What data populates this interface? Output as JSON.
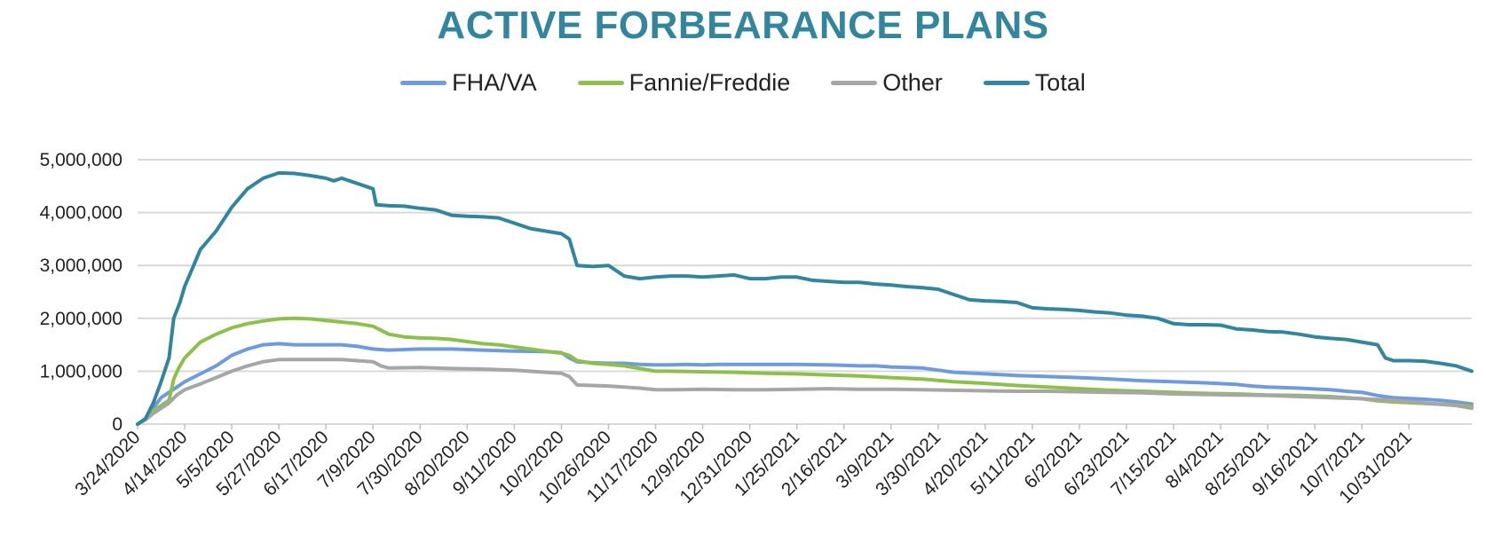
{
  "chart_data": {
    "type": "line",
    "title": "ACTIVE FORBEARANCE PLANS",
    "xlabel": "",
    "ylabel": "",
    "ylim": [
      0,
      5000000
    ],
    "y_ticks": [
      0,
      1000000,
      2000000,
      3000000,
      4000000,
      5000000
    ],
    "y_tick_labels": [
      "0",
      "1,000,000",
      "2,000,000",
      "3,000,000",
      "4,000,000",
      "5,000,000"
    ],
    "grid": true,
    "legend_position": "top-center",
    "x_domain": [
      0,
      85
    ],
    "x_tick_positions": [
      0,
      3,
      6,
      9,
      12,
      15,
      18,
      21,
      24,
      27,
      30,
      33,
      36,
      39,
      42,
      45,
      48,
      51,
      54,
      57,
      60,
      63,
      66,
      69,
      72,
      75,
      78,
      81
    ],
    "x_tick_labels": [
      "3/24/2020",
      "4/14/2020",
      "5/5/2020",
      "5/27/2020",
      "6/17/2020",
      "7/9/2020",
      "7/30/2020",
      "8/20/2020",
      "9/11/2020",
      "10/2/2020",
      "10/26/2020",
      "11/17/2020",
      "12/9/2020",
      "12/31/2020",
      "1/25/2021",
      "2/16/2021",
      "3/9/2021",
      "3/30/2021",
      "4/20/2021",
      "5/11/2021",
      "6/2/2021",
      "6/23/2021",
      "7/15/2021",
      "8/4/2021",
      "8/25/2021",
      "9/16/2021",
      "10/7/2021",
      "10/31/2021"
    ],
    "series": [
      {
        "name": "FHA/VA",
        "color": "#6F9BDC",
        "points": [
          [
            0,
            0
          ],
          [
            0.5,
            100000
          ],
          [
            1,
            300000
          ],
          [
            1.5,
            500000
          ],
          [
            2,
            600000
          ],
          [
            2.5,
            700000
          ],
          [
            3,
            800000
          ],
          [
            4,
            950000
          ],
          [
            5,
            1100000
          ],
          [
            6,
            1300000
          ],
          [
            7,
            1420000
          ],
          [
            8,
            1500000
          ],
          [
            9,
            1520000
          ],
          [
            10,
            1500000
          ],
          [
            12,
            1500000
          ],
          [
            13,
            1500000
          ],
          [
            14,
            1470000
          ],
          [
            15,
            1420000
          ],
          [
            16,
            1400000
          ],
          [
            18,
            1420000
          ],
          [
            20,
            1420000
          ],
          [
            22,
            1400000
          ],
          [
            24,
            1380000
          ],
          [
            26,
            1370000
          ],
          [
            27,
            1350000
          ],
          [
            27.5,
            1250000
          ],
          [
            28,
            1180000
          ],
          [
            29,
            1160000
          ],
          [
            30,
            1150000
          ],
          [
            31,
            1150000
          ],
          [
            32,
            1130000
          ],
          [
            33,
            1120000
          ],
          [
            34,
            1120000
          ],
          [
            35,
            1130000
          ],
          [
            36,
            1120000
          ],
          [
            37,
            1130000
          ],
          [
            38,
            1130000
          ],
          [
            40,
            1130000
          ],
          [
            42,
            1130000
          ],
          [
            44,
            1120000
          ],
          [
            45,
            1110000
          ],
          [
            46,
            1100000
          ],
          [
            47,
            1100000
          ],
          [
            48,
            1080000
          ],
          [
            50,
            1060000
          ],
          [
            51,
            1020000
          ],
          [
            52,
            980000
          ],
          [
            54,
            950000
          ],
          [
            56,
            920000
          ],
          [
            58,
            900000
          ],
          [
            60,
            880000
          ],
          [
            62,
            850000
          ],
          [
            64,
            820000
          ],
          [
            66,
            800000
          ],
          [
            68,
            780000
          ],
          [
            70,
            750000
          ],
          [
            71,
            720000
          ],
          [
            72,
            700000
          ],
          [
            74,
            680000
          ],
          [
            76,
            650000
          ],
          [
            77,
            620000
          ],
          [
            78,
            600000
          ],
          [
            79,
            540000
          ],
          [
            80,
            500000
          ],
          [
            82,
            470000
          ],
          [
            83,
            450000
          ],
          [
            84,
            420000
          ],
          [
            85,
            380000
          ]
        ]
      },
      {
        "name": "Fannie/Freddie",
        "color": "#8DC04A",
        "points": [
          [
            0,
            0
          ],
          [
            0.5,
            100000
          ],
          [
            1,
            250000
          ],
          [
            1.5,
            350000
          ],
          [
            2,
            450000
          ],
          [
            2.3,
            850000
          ],
          [
            2.6,
            1050000
          ],
          [
            3,
            1250000
          ],
          [
            3.5,
            1400000
          ],
          [
            4,
            1550000
          ],
          [
            5,
            1700000
          ],
          [
            6,
            1820000
          ],
          [
            7,
            1900000
          ],
          [
            8,
            1950000
          ],
          [
            9,
            1990000
          ],
          [
            10,
            2000000
          ],
          [
            11,
            1990000
          ],
          [
            12,
            1960000
          ],
          [
            13,
            1930000
          ],
          [
            14,
            1900000
          ],
          [
            15,
            1850000
          ],
          [
            16,
            1700000
          ],
          [
            17,
            1650000
          ],
          [
            18,
            1630000
          ],
          [
            19,
            1620000
          ],
          [
            20,
            1600000
          ],
          [
            21,
            1560000
          ],
          [
            22,
            1520000
          ],
          [
            23,
            1500000
          ],
          [
            24,
            1460000
          ],
          [
            25,
            1420000
          ],
          [
            26,
            1380000
          ],
          [
            27,
            1340000
          ],
          [
            27.5,
            1300000
          ],
          [
            28,
            1200000
          ],
          [
            29,
            1150000
          ],
          [
            30,
            1130000
          ],
          [
            31,
            1100000
          ],
          [
            32,
            1050000
          ],
          [
            33,
            1000000
          ],
          [
            34,
            1000000
          ],
          [
            36,
            990000
          ],
          [
            38,
            980000
          ],
          [
            40,
            960000
          ],
          [
            42,
            950000
          ],
          [
            44,
            930000
          ],
          [
            46,
            910000
          ],
          [
            48,
            880000
          ],
          [
            50,
            850000
          ],
          [
            52,
            800000
          ],
          [
            54,
            770000
          ],
          [
            56,
            730000
          ],
          [
            58,
            700000
          ],
          [
            60,
            670000
          ],
          [
            62,
            640000
          ],
          [
            64,
            620000
          ],
          [
            66,
            600000
          ],
          [
            68,
            580000
          ],
          [
            70,
            570000
          ],
          [
            72,
            550000
          ],
          [
            74,
            540000
          ],
          [
            76,
            520000
          ],
          [
            78,
            480000
          ],
          [
            79,
            440000
          ],
          [
            80,
            420000
          ],
          [
            82,
            390000
          ],
          [
            84,
            360000
          ],
          [
            85,
            340000
          ]
        ]
      },
      {
        "name": "Other",
        "color": "#A6A6A6",
        "points": [
          [
            0,
            0
          ],
          [
            0.5,
            80000
          ],
          [
            1,
            200000
          ],
          [
            1.5,
            300000
          ],
          [
            2,
            400000
          ],
          [
            2.5,
            550000
          ],
          [
            3,
            650000
          ],
          [
            4,
            760000
          ],
          [
            5,
            880000
          ],
          [
            6,
            1000000
          ],
          [
            7,
            1100000
          ],
          [
            8,
            1180000
          ],
          [
            9,
            1220000
          ],
          [
            10,
            1220000
          ],
          [
            12,
            1220000
          ],
          [
            13,
            1220000
          ],
          [
            14,
            1200000
          ],
          [
            15,
            1180000
          ],
          [
            15.5,
            1100000
          ],
          [
            16,
            1060000
          ],
          [
            18,
            1070000
          ],
          [
            20,
            1050000
          ],
          [
            22,
            1040000
          ],
          [
            24,
            1020000
          ],
          [
            26,
            980000
          ],
          [
            27,
            960000
          ],
          [
            27.5,
            900000
          ],
          [
            28,
            740000
          ],
          [
            29,
            730000
          ],
          [
            30,
            720000
          ],
          [
            31,
            700000
          ],
          [
            32,
            680000
          ],
          [
            33,
            650000
          ],
          [
            34,
            650000
          ],
          [
            36,
            660000
          ],
          [
            38,
            650000
          ],
          [
            40,
            650000
          ],
          [
            42,
            660000
          ],
          [
            44,
            670000
          ],
          [
            46,
            660000
          ],
          [
            48,
            660000
          ],
          [
            50,
            650000
          ],
          [
            52,
            640000
          ],
          [
            54,
            630000
          ],
          [
            56,
            620000
          ],
          [
            58,
            620000
          ],
          [
            60,
            610000
          ],
          [
            62,
            600000
          ],
          [
            64,
            590000
          ],
          [
            66,
            570000
          ],
          [
            68,
            560000
          ],
          [
            70,
            550000
          ],
          [
            72,
            540000
          ],
          [
            74,
            520000
          ],
          [
            76,
            500000
          ],
          [
            78,
            480000
          ],
          [
            80,
            450000
          ],
          [
            82,
            400000
          ],
          [
            84,
            350000
          ],
          [
            85,
            300000
          ]
        ]
      },
      {
        "name": "Total",
        "color": "#31859C",
        "points": [
          [
            0,
            0
          ],
          [
            0.5,
            100000
          ],
          [
            1,
            400000
          ],
          [
            1.5,
            800000
          ],
          [
            2,
            1250000
          ],
          [
            2.3,
            2000000
          ],
          [
            2.7,
            2300000
          ],
          [
            3,
            2600000
          ],
          [
            3.5,
            2950000
          ],
          [
            4,
            3300000
          ],
          [
            5,
            3650000
          ],
          [
            6,
            4100000
          ],
          [
            7,
            4450000
          ],
          [
            8,
            4650000
          ],
          [
            9,
            4750000
          ],
          [
            10,
            4740000
          ],
          [
            11,
            4700000
          ],
          [
            12,
            4650000
          ],
          [
            12.5,
            4600000
          ],
          [
            13,
            4650000
          ],
          [
            13.5,
            4600000
          ],
          [
            14,
            4550000
          ],
          [
            15,
            4450000
          ],
          [
            15.2,
            4150000
          ],
          [
            16,
            4130000
          ],
          [
            17,
            4120000
          ],
          [
            18,
            4080000
          ],
          [
            19,
            4050000
          ],
          [
            20,
            3950000
          ],
          [
            21,
            3930000
          ],
          [
            22,
            3920000
          ],
          [
            23,
            3900000
          ],
          [
            24,
            3800000
          ],
          [
            25,
            3700000
          ],
          [
            26,
            3650000
          ],
          [
            27,
            3600000
          ],
          [
            27.5,
            3500000
          ],
          [
            28,
            3000000
          ],
          [
            29,
            2980000
          ],
          [
            30,
            3000000
          ],
          [
            31,
            2800000
          ],
          [
            32,
            2750000
          ],
          [
            33,
            2780000
          ],
          [
            34,
            2800000
          ],
          [
            35,
            2800000
          ],
          [
            36,
            2780000
          ],
          [
            37,
            2800000
          ],
          [
            38,
            2820000
          ],
          [
            39,
            2750000
          ],
          [
            40,
            2750000
          ],
          [
            41,
            2780000
          ],
          [
            42,
            2780000
          ],
          [
            43,
            2720000
          ],
          [
            44,
            2700000
          ],
          [
            45,
            2680000
          ],
          [
            46,
            2680000
          ],
          [
            47,
            2650000
          ],
          [
            48,
            2630000
          ],
          [
            49,
            2600000
          ],
          [
            50,
            2580000
          ],
          [
            51,
            2550000
          ],
          [
            52,
            2450000
          ],
          [
            53,
            2350000
          ],
          [
            54,
            2330000
          ],
          [
            55,
            2320000
          ],
          [
            56,
            2300000
          ],
          [
            57,
            2200000
          ],
          [
            58,
            2180000
          ],
          [
            59,
            2170000
          ],
          [
            60,
            2150000
          ],
          [
            61,
            2120000
          ],
          [
            62,
            2100000
          ],
          [
            63,
            2060000
          ],
          [
            64,
            2040000
          ],
          [
            65,
            2000000
          ],
          [
            66,
            1900000
          ],
          [
            67,
            1880000
          ],
          [
            68,
            1880000
          ],
          [
            69,
            1870000
          ],
          [
            70,
            1800000
          ],
          [
            71,
            1780000
          ],
          [
            72,
            1750000
          ],
          [
            73,
            1740000
          ],
          [
            74,
            1700000
          ],
          [
            75,
            1650000
          ],
          [
            76,
            1620000
          ],
          [
            77,
            1600000
          ],
          [
            78,
            1550000
          ],
          [
            79,
            1500000
          ],
          [
            79.5,
            1250000
          ],
          [
            80,
            1200000
          ],
          [
            81,
            1200000
          ],
          [
            82,
            1190000
          ],
          [
            83,
            1150000
          ],
          [
            84,
            1100000
          ],
          [
            85,
            1000000
          ]
        ]
      }
    ]
  }
}
